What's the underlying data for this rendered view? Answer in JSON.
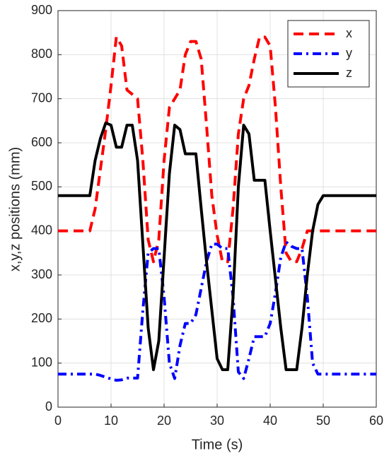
{
  "chart_data": {
    "type": "line",
    "xlabel": "Time (s)",
    "ylabel": "x,y,z positions (mm)",
    "x": [
      0,
      6,
      7,
      8,
      9,
      10,
      11,
      12,
      13,
      14,
      15,
      16,
      17,
      18,
      19,
      20,
      21,
      22,
      23,
      24,
      25,
      26,
      27,
      28,
      29,
      30,
      31,
      32,
      33,
      34,
      35,
      36,
      37,
      38,
      39,
      40,
      41,
      42,
      43,
      44,
      45,
      46,
      47,
      48,
      49,
      50,
      60
    ],
    "series": [
      {
        "name": "x",
        "color": "#ff0000",
        "dash": "dashed",
        "values": [
          400,
          400,
          450,
          540,
          630,
          730,
          840,
          820,
          720,
          710,
          700,
          560,
          380,
          330,
          380,
          560,
          680,
          700,
          720,
          800,
          830,
          830,
          790,
          640,
          480,
          390,
          330,
          330,
          450,
          620,
          700,
          730,
          790,
          840,
          840,
          820,
          680,
          500,
          350,
          330,
          330,
          360,
          400,
          400,
          400,
          400,
          400
        ]
      },
      {
        "name": "y",
        "color": "#0000ff",
        "dash": "dashdot",
        "values": [
          75,
          75,
          75,
          72,
          68,
          64,
          61,
          62,
          66,
          66,
          66,
          220,
          350,
          360,
          360,
          250,
          100,
          65,
          140,
          190,
          190,
          210,
          270,
          330,
          370,
          370,
          360,
          360,
          250,
          80,
          65,
          110,
          160,
          160,
          160,
          190,
          260,
          340,
          375,
          365,
          360,
          360,
          250,
          100,
          75,
          75,
          75
        ]
      },
      {
        "name": "z",
        "color": "#000000",
        "dash": "solid",
        "values": [
          480,
          480,
          560,
          610,
          645,
          640,
          590,
          590,
          640,
          640,
          560,
          370,
          180,
          85,
          150,
          340,
          530,
          640,
          630,
          575,
          575,
          575,
          450,
          330,
          220,
          110,
          85,
          85,
          250,
          500,
          640,
          620,
          515,
          515,
          515,
          400,
          290,
          180,
          85,
          85,
          85,
          180,
          300,
          400,
          460,
          480,
          480
        ]
      }
    ],
    "xlim": [
      0,
      60
    ],
    "xticks": [
      0,
      10,
      20,
      30,
      40,
      50,
      60
    ],
    "ylim": [
      0,
      900
    ],
    "yticks": [
      0,
      100,
      200,
      300,
      400,
      500,
      600,
      700,
      800,
      900
    ],
    "grid": true,
    "legend": "top-right"
  }
}
